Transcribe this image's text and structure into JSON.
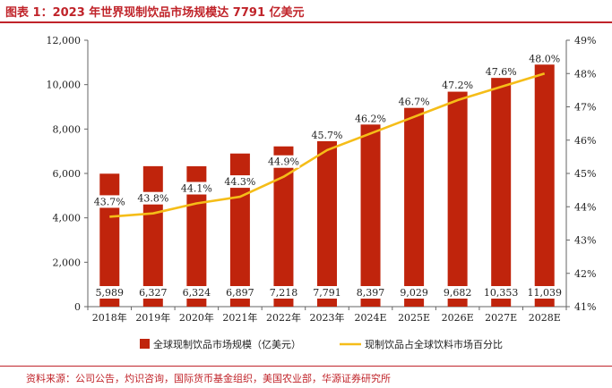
{
  "figure": {
    "title": "图表 1：2023 年世界现制饮品市场规模达 7791 亿美元",
    "source": "资料来源：公司公告，灼识咨询，国际货币基金组织，美国农业部，华源证券研究所"
  },
  "colors": {
    "bar": "#c0240c",
    "line": "#f5bd18",
    "accent": "#c0242a"
  },
  "chart_data": {
    "type": "bar",
    "categories": [
      "2018年",
      "2019年",
      "2020年",
      "2021年",
      "2022年",
      "2023年",
      "2024E",
      "2025E",
      "2026E",
      "2027E",
      "2028E"
    ],
    "series": [
      {
        "name": "全球现制饮品市场规模（亿美元）",
        "type": "bar",
        "axis": "left",
        "values": [
          5989,
          6327,
          6324,
          6897,
          7218,
          7791,
          8397,
          9029,
          9682,
          10353,
          11039
        ],
        "labels": [
          "5,989",
          "6,327",
          "6,324",
          "6,897",
          "7,218",
          "7,791",
          "8,397",
          "9,029",
          "9,682",
          "10,353",
          "11,039"
        ]
      },
      {
        "name": "现制饮品占全球饮料市场百分比",
        "type": "line",
        "axis": "right",
        "values": [
          43.7,
          43.8,
          44.1,
          44.3,
          44.9,
          45.7,
          46.2,
          46.7,
          47.2,
          47.6,
          48.0
        ],
        "labels": [
          "43.7%",
          "43.8%",
          "44.1%",
          "44.3%",
          "44.9%",
          "45.7%",
          "46.2%",
          "46.7%",
          "47.2%",
          "47.6%",
          "48.0%"
        ]
      }
    ],
    "y_left": {
      "lim": [
        0,
        12000
      ],
      "ticks": [
        0,
        2000,
        4000,
        6000,
        8000,
        10000,
        12000
      ],
      "tick_labels": [
        "0",
        "2,000",
        "4,000",
        "6,000",
        "8,000",
        "10,000",
        "12,000"
      ]
    },
    "y_right": {
      "lim": [
        41,
        49
      ],
      "ticks": [
        41,
        42,
        43,
        44,
        45,
        46,
        47,
        48,
        49
      ],
      "tick_labels": [
        "41%",
        "42%",
        "43%",
        "44%",
        "45%",
        "46%",
        "47%",
        "48%",
        "49%"
      ]
    },
    "grid": false,
    "legend_position": "bottom"
  }
}
